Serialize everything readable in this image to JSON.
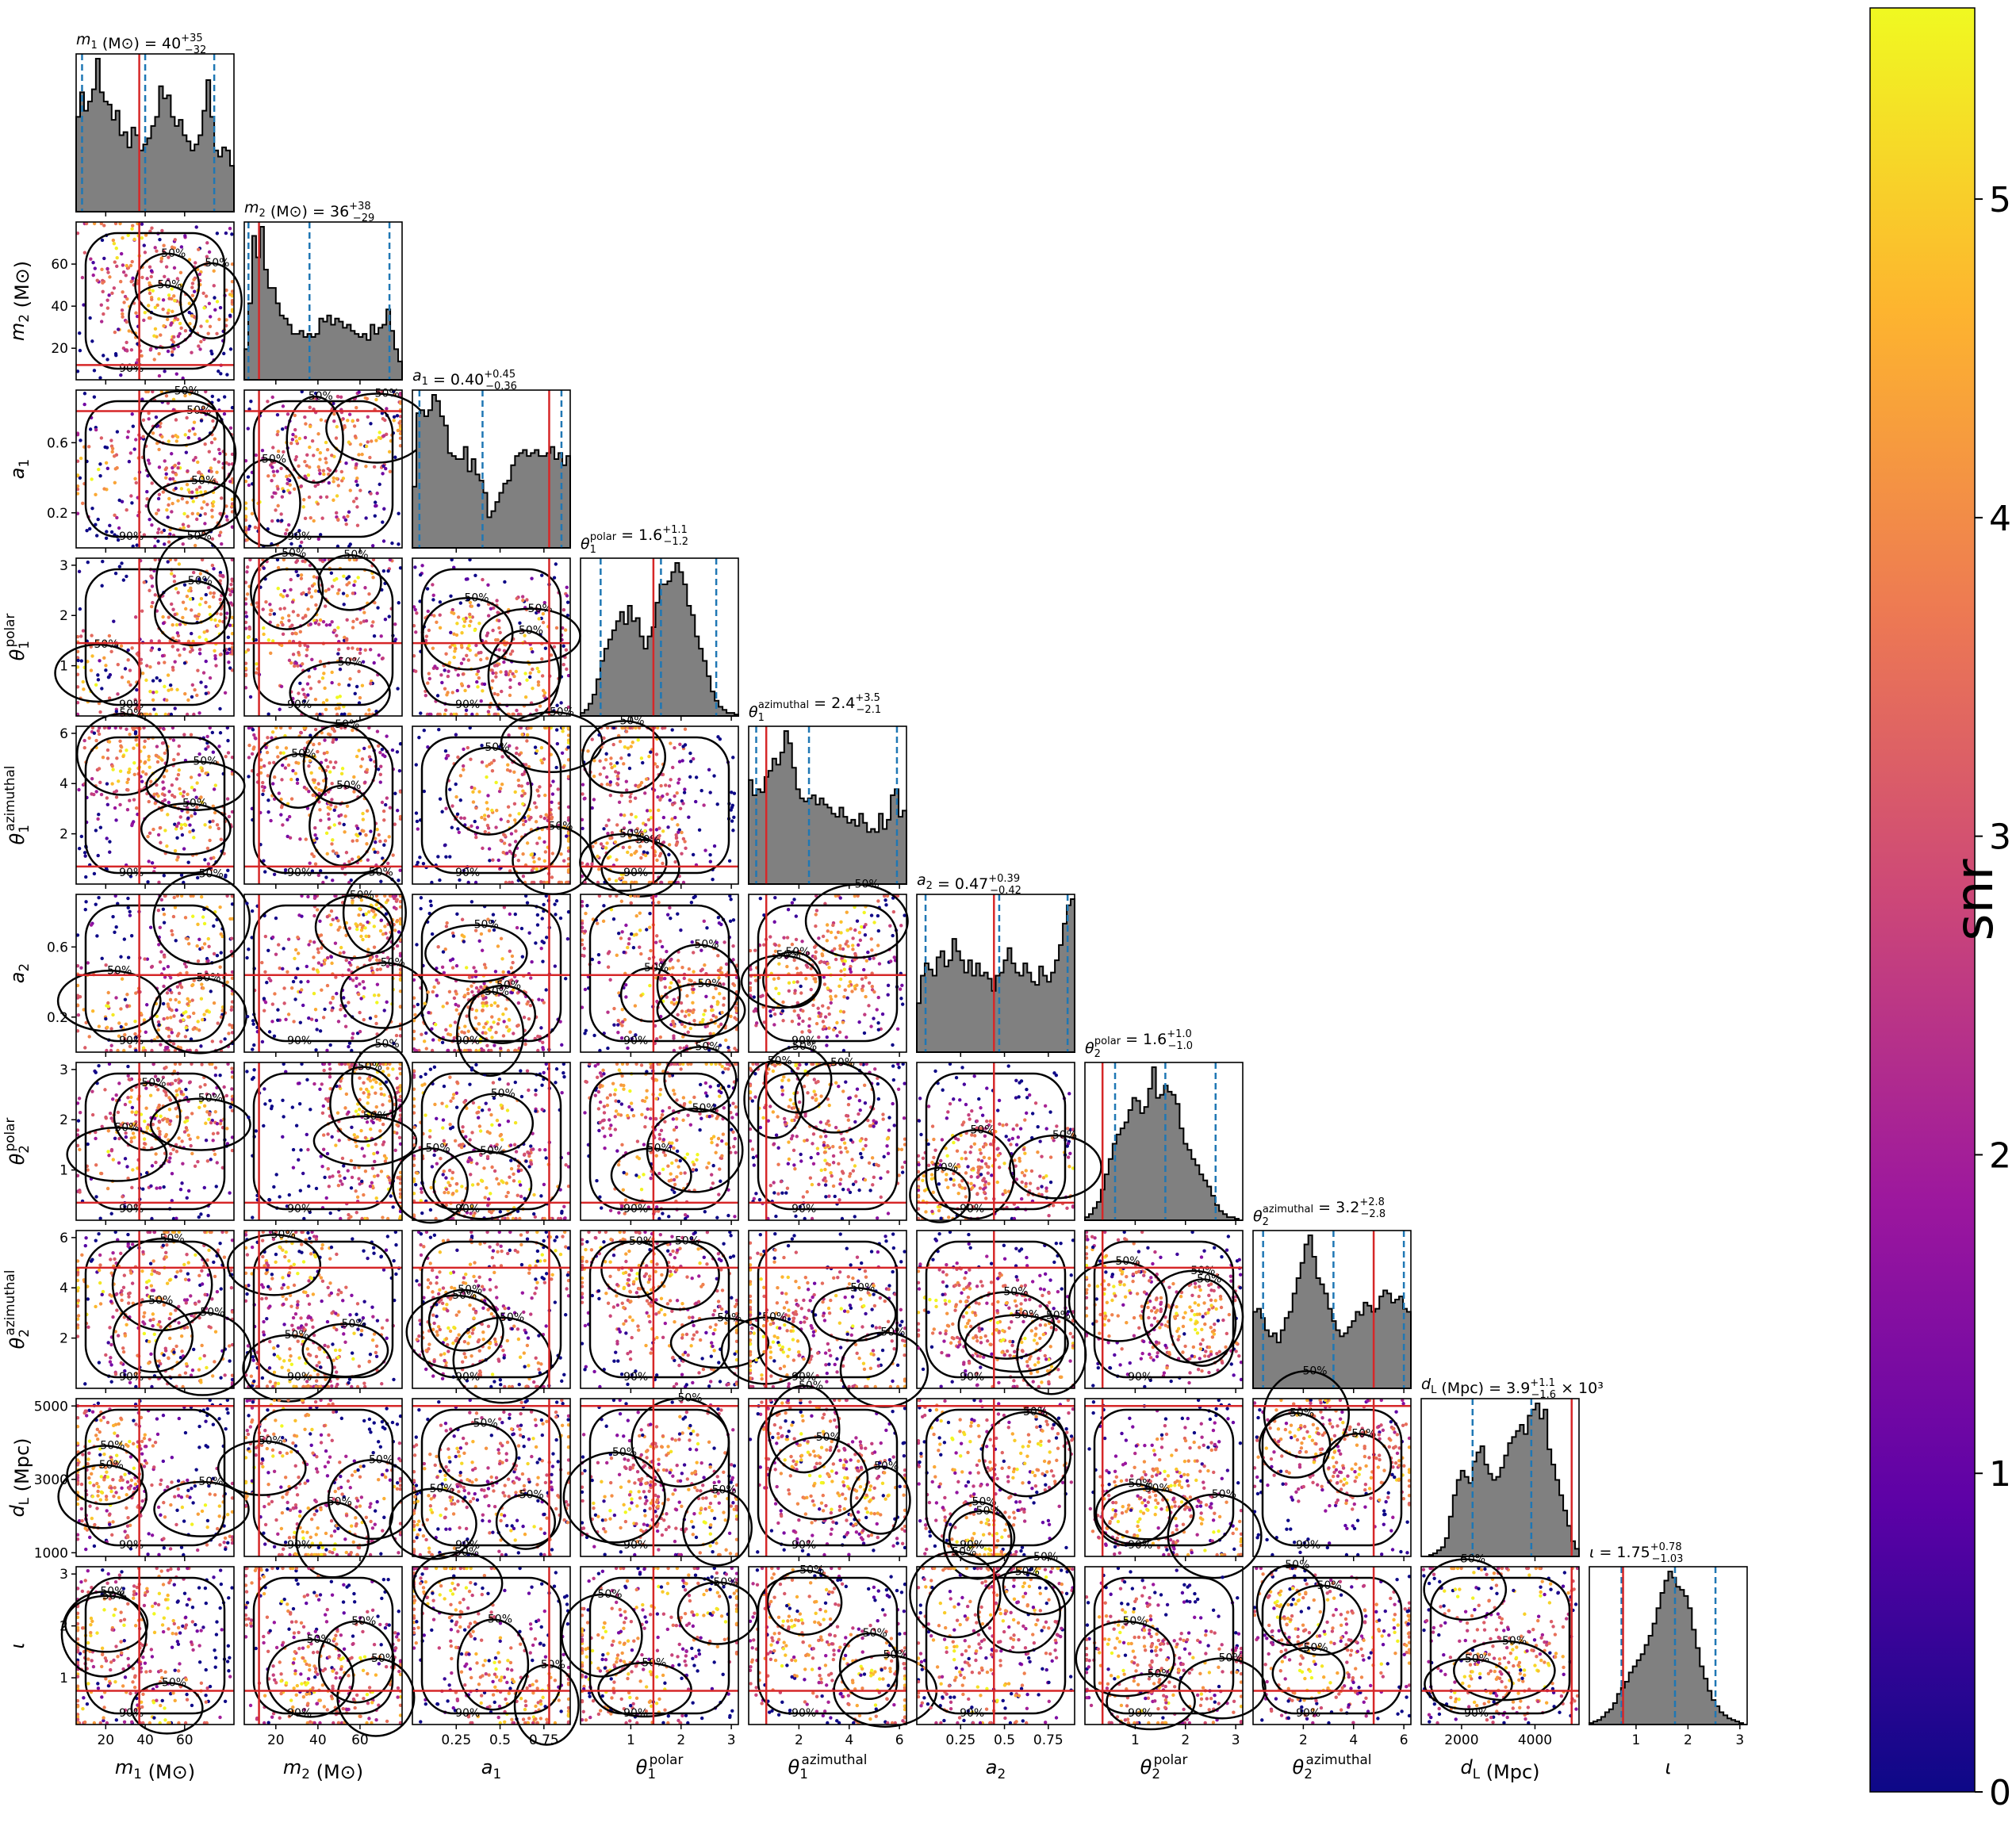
{
  "chart_data": {
    "type": "corner",
    "description_of_marks": "Lower-triangle panels are scatter plots of posterior samples colored by snr with 50% and 90% credible contours; diagonal panels are 1D histograms with dashed median/quantile lines; red lines mark injected values.",
    "parameters": [
      {
        "id": "m1",
        "label_main": "m",
        "label_sub": "1",
        "label_sup": "",
        "unit": " (M⊙)",
        "range": [
          5,
          85
        ],
        "ticks": [
          20,
          40,
          60
        ],
        "injected": 37,
        "title": {
          "value": "40",
          "plus": "+35",
          "minus": "−32",
          "suffix": ""
        },
        "quantiles": [
          8,
          40,
          75
        ]
      },
      {
        "id": "m2",
        "label_main": "m",
        "label_sub": "2",
        "label_sup": "",
        "unit": " (M⊙)",
        "range": [
          5,
          80
        ],
        "ticks": [
          20,
          40,
          60
        ],
        "injected": 12,
        "title": {
          "value": "36",
          "plus": "+38",
          "minus": "−29",
          "suffix": ""
        },
        "quantiles": [
          7,
          36,
          74
        ]
      },
      {
        "id": "a1",
        "label_main": "a",
        "label_sub": "1",
        "label_sup": "",
        "unit": "",
        "range": [
          0.0,
          0.9
        ],
        "ticks": [
          0.25,
          0.5,
          0.75
        ],
        "ticks_side": [
          0.2,
          0.6
        ],
        "injected": 0.78,
        "title": {
          "value": "0.40",
          "plus": "+0.45",
          "minus": "−0.36",
          "suffix": ""
        },
        "quantiles": [
          0.04,
          0.4,
          0.85
        ]
      },
      {
        "id": "t1p",
        "label_main": "θ",
        "label_sub": "1",
        "label_sup": "polar",
        "unit": "",
        "range": [
          0,
          3.14
        ],
        "ticks": [
          1,
          2,
          3
        ],
        "injected": 1.45,
        "title": {
          "value": "1.6",
          "plus": "+1.1",
          "minus": "−1.2",
          "suffix": ""
        },
        "quantiles": [
          0.4,
          1.6,
          2.7
        ]
      },
      {
        "id": "t1a",
        "label_main": "θ",
        "label_sub": "1",
        "label_sup": "azimuthal",
        "unit": "",
        "range": [
          0,
          6.28
        ],
        "ticks": [
          2,
          4,
          6
        ],
        "injected": 0.7,
        "title": {
          "value": "2.4",
          "plus": "+3.5",
          "minus": "−2.1",
          "suffix": ""
        },
        "quantiles": [
          0.3,
          2.4,
          5.9
        ]
      },
      {
        "id": "a2",
        "label_main": "a",
        "label_sub": "2",
        "label_sup": "",
        "unit": "",
        "range": [
          0.0,
          0.9
        ],
        "ticks": [
          0.25,
          0.5,
          0.75
        ],
        "ticks_side": [
          0.2,
          0.6
        ],
        "injected": 0.44,
        "title": {
          "value": "0.47",
          "plus": "+0.39",
          "minus": "−0.42",
          "suffix": ""
        },
        "quantiles": [
          0.05,
          0.47,
          0.86
        ]
      },
      {
        "id": "t2p",
        "label_main": "θ",
        "label_sub": "2",
        "label_sup": "polar",
        "unit": "",
        "range": [
          0,
          3.14
        ],
        "ticks": [
          1,
          2,
          3
        ],
        "injected": 0.35,
        "title": {
          "value": "1.6",
          "plus": "+1.0",
          "minus": "−1.0",
          "suffix": ""
        },
        "quantiles": [
          0.6,
          1.6,
          2.6
        ]
      },
      {
        "id": "t2a",
        "label_main": "θ",
        "label_sub": "2",
        "label_sup": "azimuthal",
        "unit": "",
        "range": [
          0,
          6.28
        ],
        "ticks": [
          2,
          4,
          6
        ],
        "injected": 4.8,
        "title": {
          "value": "3.2",
          "plus": "+2.8",
          "minus": "−2.8",
          "suffix": ""
        },
        "quantiles": [
          0.4,
          3.2,
          6.0
        ]
      },
      {
        "id": "dL",
        "label_main": "d",
        "label_sub": "L",
        "label_sup": "",
        "unit": " (Mpc)",
        "range": [
          900,
          5200
        ],
        "ticks": [
          2000,
          4000
        ],
        "ticks_side": [
          1000,
          3000,
          5000
        ],
        "injected": 5000,
        "title": {
          "value": "3.9",
          "plus": "+1.1",
          "minus": "−1.6",
          "suffix": " × 10³"
        },
        "quantiles": [
          2300,
          3900,
          5000
        ]
      },
      {
        "id": "iota",
        "label_main": "ι",
        "label_sub": "",
        "label_sup": "",
        "unit": "",
        "range": [
          0.1,
          3.14
        ],
        "ticks": [
          1,
          2,
          3
        ],
        "injected": 0.75,
        "title": {
          "value": "1.75",
          "plus": "+0.78",
          "minus": "−1.03",
          "suffix": ""
        },
        "quantiles": [
          0.72,
          1.75,
          2.53
        ]
      }
    ],
    "histograms": [
      [
        0.62,
        0.78,
        0.66,
        0.72,
        0.8,
        1.0,
        0.78,
        0.72,
        0.7,
        0.6,
        0.66,
        0.5,
        0.52,
        0.42,
        0.55,
        0.5,
        0.4,
        0.44,
        0.48,
        0.56,
        0.62,
        0.82,
        0.74,
        0.76,
        0.62,
        0.56,
        0.6,
        0.5,
        0.46,
        0.4,
        0.44,
        0.5,
        0.66,
        0.86,
        0.62,
        0.4,
        0.36,
        0.42,
        0.4,
        0.3
      ],
      [
        0.2,
        0.5,
        0.94,
        0.8,
        1.0,
        0.72,
        0.6,
        0.6,
        0.5,
        0.42,
        0.4,
        0.36,
        0.3,
        0.3,
        0.32,
        0.28,
        0.3,
        0.28,
        0.3,
        0.4,
        0.38,
        0.42,
        0.36,
        0.4,
        0.38,
        0.34,
        0.36,
        0.32,
        0.3,
        0.28,
        0.3,
        0.26,
        0.36,
        0.3,
        0.34,
        0.36,
        0.46,
        0.32,
        0.2,
        0.12
      ],
      [
        0.4,
        0.88,
        0.9,
        0.86,
        0.9,
        1.0,
        0.96,
        0.86,
        0.8,
        0.62,
        0.6,
        0.58,
        0.58,
        0.66,
        0.5,
        0.58,
        0.48,
        0.44,
        0.36,
        0.2,
        0.24,
        0.3,
        0.36,
        0.42,
        0.44,
        0.54,
        0.6,
        0.62,
        0.64,
        0.6,
        0.62,
        0.64,
        0.6,
        0.6,
        0.62,
        0.66,
        0.58,
        0.62,
        0.54,
        0.6
      ],
      [
        0.02,
        0.04,
        0.08,
        0.14,
        0.24,
        0.36,
        0.44,
        0.5,
        0.56,
        0.62,
        0.68,
        0.6,
        0.72,
        0.62,
        0.64,
        0.52,
        0.44,
        0.52,
        0.58,
        0.74,
        0.86,
        0.86,
        0.88,
        0.94,
        1.0,
        0.94,
        0.86,
        0.72,
        0.66,
        0.52,
        0.44,
        0.36,
        0.26,
        0.16,
        0.1,
        0.06,
        0.04,
        0.02,
        0.02,
        0.01
      ],
      [
        0.68,
        0.58,
        0.62,
        0.6,
        0.7,
        0.74,
        0.82,
        0.78,
        0.86,
        1.0,
        0.92,
        0.76,
        0.62,
        0.56,
        0.54,
        0.56,
        0.58,
        0.52,
        0.56,
        0.52,
        0.5,
        0.46,
        0.44,
        0.5,
        0.44,
        0.4,
        0.42,
        0.38,
        0.46,
        0.4,
        0.34,
        0.36,
        0.34,
        0.46,
        0.36,
        0.42,
        0.58,
        0.62,
        0.44,
        0.48
      ],
      [
        0.32,
        0.5,
        0.58,
        0.54,
        0.5,
        0.62,
        0.66,
        0.56,
        0.6,
        0.74,
        0.66,
        0.6,
        0.52,
        0.6,
        0.5,
        0.58,
        0.5,
        0.52,
        0.48,
        0.4,
        0.5,
        0.52,
        0.6,
        0.68,
        0.58,
        0.52,
        0.5,
        0.58,
        0.52,
        0.46,
        0.44,
        0.56,
        0.5,
        0.46,
        0.52,
        0.6,
        0.7,
        0.84,
        0.96,
        1.0
      ],
      [
        0.02,
        0.04,
        0.08,
        0.12,
        0.2,
        0.3,
        0.4,
        0.5,
        0.56,
        0.6,
        0.64,
        0.72,
        0.8,
        0.78,
        0.7,
        0.74,
        0.86,
        1.0,
        0.8,
        0.82,
        0.88,
        0.84,
        0.82,
        0.76,
        0.6,
        0.5,
        0.46,
        0.4,
        0.36,
        0.3,
        0.26,
        0.22,
        0.16,
        0.1,
        0.06,
        0.04,
        0.02,
        0.02,
        0.01,
        0.0
      ],
      [
        0.5,
        0.52,
        0.46,
        0.38,
        0.34,
        0.36,
        0.3,
        0.38,
        0.46,
        0.5,
        0.62,
        0.72,
        0.82,
        0.94,
        1.0,
        0.86,
        0.72,
        0.68,
        0.62,
        0.52,
        0.44,
        0.38,
        0.34,
        0.36,
        0.4,
        0.44,
        0.5,
        0.48,
        0.56,
        0.54,
        0.5,
        0.52,
        0.6,
        0.64,
        0.62,
        0.56,
        0.58,
        0.6,
        0.52,
        0.5
      ],
      [
        0.0,
        0.0,
        0.01,
        0.02,
        0.04,
        0.06,
        0.12,
        0.26,
        0.4,
        0.5,
        0.56,
        0.52,
        0.48,
        0.62,
        0.68,
        0.72,
        0.6,
        0.54,
        0.5,
        0.52,
        0.58,
        0.66,
        0.74,
        0.78,
        0.82,
        0.86,
        0.8,
        0.92,
        0.96,
        1.0,
        0.9,
        0.96,
        0.7,
        0.6,
        0.5,
        0.4,
        0.3,
        0.2,
        0.1,
        0.05
      ],
      [
        0.01,
        0.02,
        0.03,
        0.05,
        0.08,
        0.1,
        0.14,
        0.2,
        0.24,
        0.28,
        0.34,
        0.38,
        0.42,
        0.46,
        0.52,
        0.58,
        0.66,
        0.76,
        0.86,
        0.94,
        1.0,
        0.96,
        0.9,
        0.88,
        0.84,
        0.76,
        0.62,
        0.5,
        0.38,
        0.3,
        0.22,
        0.16,
        0.12,
        0.08,
        0.06,
        0.04,
        0.03,
        0.02,
        0.01,
        0.0
      ]
    ],
    "colorbar": {
      "label": "snr",
      "range": [
        0,
        5.6
      ],
      "ticks": [
        0,
        1,
        2,
        3,
        4,
        5
      ],
      "colormap": "plasma",
      "colors": [
        "#0d0887",
        "#5c01a6",
        "#9c179e",
        "#cc4778",
        "#ed7953",
        "#fdb42f",
        "#f0f921"
      ]
    },
    "contour_labels": [
      "50%",
      "90%"
    ],
    "colors": {
      "histogram_fill": "#808080",
      "histogram_edge": "#000000",
      "quantile_lines": "#1f77b4",
      "injection_lines": "#d62728",
      "contours": "#000000"
    }
  }
}
